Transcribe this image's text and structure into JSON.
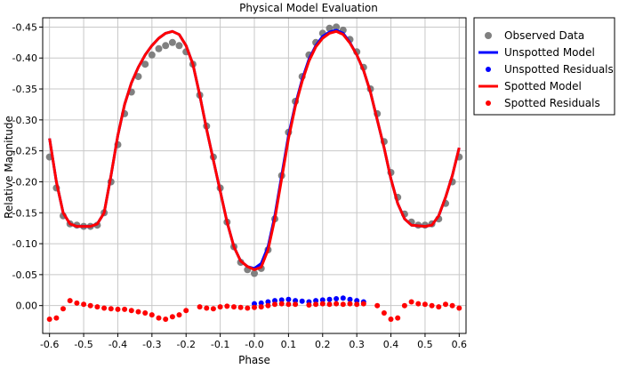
{
  "chart_data": {
    "type": "scatter",
    "title": "Physical Model Evaluation",
    "xlabel": "Phase",
    "ylabel": "Relative Magnitude",
    "xlim": [
      -0.62,
      0.62
    ],
    "ylim": [
      0.045,
      -0.465
    ],
    "y_reversed": true,
    "grid": true,
    "legend_position": "right",
    "x_ticks": [
      {
        "value": -0.6,
        "label": "-0.6"
      },
      {
        "value": -0.5,
        "label": "-0.5"
      },
      {
        "value": -0.4,
        "label": "-0.4"
      },
      {
        "value": -0.3,
        "label": "-0.3"
      },
      {
        "value": -0.2,
        "label": "-0.2"
      },
      {
        "value": -0.1,
        "label": "-0.1"
      },
      {
        "value": 0.0,
        "label": "-0.0"
      },
      {
        "value": 0.1,
        "label": "0.1"
      },
      {
        "value": 0.2,
        "label": "0.2"
      },
      {
        "value": 0.3,
        "label": "0.3"
      },
      {
        "value": 0.4,
        "label": "0.4"
      },
      {
        "value": 0.5,
        "label": "0.5"
      },
      {
        "value": 0.6,
        "label": "0.6"
      }
    ],
    "y_ticks": [
      {
        "value": -0.45,
        "label": "-0.45"
      },
      {
        "value": -0.4,
        "label": "-0.40"
      },
      {
        "value": -0.35,
        "label": "-0.35"
      },
      {
        "value": -0.3,
        "label": "-0.30"
      },
      {
        "value": -0.25,
        "label": "-0.25"
      },
      {
        "value": -0.2,
        "label": "-0.20"
      },
      {
        "value": -0.15,
        "label": "-0.15"
      },
      {
        "value": -0.1,
        "label": "-0.10"
      },
      {
        "value": -0.05,
        "label": "-0.05"
      },
      {
        "value": 0.0,
        "label": "0.00"
      }
    ],
    "series": [
      {
        "name": "Observed Data",
        "kind": "points",
        "color": "#808080",
        "points": [
          [
            -0.6,
            -0.24
          ],
          [
            -0.58,
            -0.19
          ],
          [
            -0.56,
            -0.145
          ],
          [
            -0.54,
            -0.132
          ],
          [
            -0.52,
            -0.13
          ],
          [
            -0.5,
            -0.128
          ],
          [
            -0.48,
            -0.128
          ],
          [
            -0.46,
            -0.13
          ],
          [
            -0.44,
            -0.15
          ],
          [
            -0.42,
            -0.2
          ],
          [
            -0.4,
            -0.26
          ],
          [
            -0.38,
            -0.31
          ],
          [
            -0.36,
            -0.345
          ],
          [
            -0.34,
            -0.37
          ],
          [
            -0.32,
            -0.39
          ],
          [
            -0.3,
            -0.405
          ],
          [
            -0.28,
            -0.415
          ],
          [
            -0.26,
            -0.42
          ],
          [
            -0.24,
            -0.425
          ],
          [
            -0.22,
            -0.42
          ],
          [
            -0.2,
            -0.41
          ],
          [
            -0.18,
            -0.39
          ],
          [
            -0.16,
            -0.34
          ],
          [
            -0.14,
            -0.29
          ],
          [
            -0.12,
            -0.24
          ],
          [
            -0.1,
            -0.19
          ],
          [
            -0.08,
            -0.135
          ],
          [
            -0.06,
            -0.095
          ],
          [
            -0.04,
            -0.07
          ],
          [
            -0.02,
            -0.058
          ],
          [
            0.0,
            -0.052
          ],
          [
            0.02,
            -0.06
          ],
          [
            0.04,
            -0.09
          ],
          [
            0.06,
            -0.14
          ],
          [
            0.08,
            -0.21
          ],
          [
            0.1,
            -0.28
          ],
          [
            0.12,
            -0.33
          ],
          [
            0.14,
            -0.37
          ],
          [
            0.16,
            -0.405
          ],
          [
            0.18,
            -0.425
          ],
          [
            0.2,
            -0.44
          ],
          [
            0.22,
            -0.448
          ],
          [
            0.24,
            -0.45
          ],
          [
            0.26,
            -0.445
          ],
          [
            0.28,
            -0.43
          ],
          [
            0.3,
            -0.41
          ],
          [
            0.32,
            -0.385
          ],
          [
            0.34,
            -0.35
          ],
          [
            0.36,
            -0.31
          ],
          [
            0.38,
            -0.265
          ],
          [
            0.4,
            -0.215
          ],
          [
            0.42,
            -0.175
          ],
          [
            0.44,
            -0.148
          ],
          [
            0.46,
            -0.135
          ],
          [
            0.48,
            -0.13
          ],
          [
            0.5,
            -0.13
          ],
          [
            0.52,
            -0.132
          ],
          [
            0.54,
            -0.14
          ],
          [
            0.56,
            -0.165
          ],
          [
            0.58,
            -0.2
          ],
          [
            0.6,
            -0.24
          ]
        ]
      },
      {
        "name": "Unspotted Model",
        "kind": "line",
        "color": "#0000ff",
        "points": [
          [
            -0.6,
            -0.27
          ],
          [
            -0.58,
            -0.2
          ],
          [
            -0.56,
            -0.15
          ],
          [
            -0.54,
            -0.132
          ],
          [
            -0.52,
            -0.128
          ],
          [
            -0.48,
            -0.128
          ],
          [
            -0.46,
            -0.132
          ],
          [
            -0.44,
            -0.15
          ],
          [
            -0.42,
            -0.21
          ],
          [
            -0.4,
            -0.275
          ],
          [
            -0.38,
            -0.325
          ],
          [
            -0.36,
            -0.36
          ],
          [
            -0.34,
            -0.385
          ],
          [
            -0.32,
            -0.405
          ],
          [
            -0.3,
            -0.42
          ],
          [
            -0.28,
            -0.432
          ],
          [
            -0.26,
            -0.44
          ],
          [
            -0.24,
            -0.443
          ],
          [
            -0.22,
            -0.438
          ],
          [
            -0.2,
            -0.42
          ],
          [
            -0.18,
            -0.39
          ],
          [
            -0.16,
            -0.34
          ],
          [
            -0.14,
            -0.285
          ],
          [
            -0.12,
            -0.235
          ],
          [
            -0.1,
            -0.185
          ],
          [
            -0.08,
            -0.135
          ],
          [
            -0.06,
            -0.095
          ],
          [
            -0.04,
            -0.072
          ],
          [
            -0.02,
            -0.063
          ],
          [
            0.0,
            -0.06
          ],
          [
            0.02,
            -0.068
          ],
          [
            0.04,
            -0.095
          ],
          [
            0.06,
            -0.145
          ],
          [
            0.08,
            -0.21
          ],
          [
            0.1,
            -0.275
          ],
          [
            0.12,
            -0.325
          ],
          [
            0.14,
            -0.365
          ],
          [
            0.16,
            -0.398
          ],
          [
            0.18,
            -0.42
          ],
          [
            0.2,
            -0.435
          ],
          [
            0.22,
            -0.442
          ],
          [
            0.24,
            -0.445
          ],
          [
            0.26,
            -0.44
          ],
          [
            0.28,
            -0.425
          ],
          [
            0.3,
            -0.405
          ],
          [
            0.32,
            -0.38
          ],
          [
            0.34,
            -0.345
          ],
          [
            0.36,
            -0.3
          ],
          [
            0.38,
            -0.255
          ],
          [
            0.4,
            -0.205
          ],
          [
            0.42,
            -0.165
          ],
          [
            0.44,
            -0.14
          ],
          [
            0.46,
            -0.13
          ],
          [
            0.5,
            -0.128
          ],
          [
            0.52,
            -0.13
          ],
          [
            0.54,
            -0.145
          ],
          [
            0.56,
            -0.175
          ],
          [
            0.58,
            -0.21
          ],
          [
            0.6,
            -0.255
          ]
        ]
      },
      {
        "name": "Unspotted Residuals",
        "kind": "points",
        "color": "#0000ff",
        "points": [
          [
            0.0,
            -0.003
          ],
          [
            0.02,
            -0.004
          ],
          [
            0.04,
            -0.006
          ],
          [
            0.06,
            -0.008
          ],
          [
            0.08,
            -0.009
          ],
          [
            0.1,
            -0.01
          ],
          [
            0.12,
            -0.008
          ],
          [
            0.14,
            -0.007
          ],
          [
            0.16,
            -0.006
          ],
          [
            0.18,
            -0.008
          ],
          [
            0.2,
            -0.009
          ],
          [
            0.22,
            -0.01
          ],
          [
            0.24,
            -0.011
          ],
          [
            0.26,
            -0.012
          ],
          [
            0.28,
            -0.01
          ],
          [
            0.3,
            -0.008
          ],
          [
            0.32,
            -0.006
          ]
        ]
      },
      {
        "name": "Spotted Model",
        "kind": "line",
        "color": "#ff0000",
        "points": [
          [
            -0.6,
            -0.27
          ],
          [
            -0.58,
            -0.2
          ],
          [
            -0.56,
            -0.15
          ],
          [
            -0.54,
            -0.132
          ],
          [
            -0.52,
            -0.128
          ],
          [
            -0.48,
            -0.128
          ],
          [
            -0.46,
            -0.132
          ],
          [
            -0.44,
            -0.15
          ],
          [
            -0.42,
            -0.21
          ],
          [
            -0.4,
            -0.275
          ],
          [
            -0.38,
            -0.325
          ],
          [
            -0.36,
            -0.36
          ],
          [
            -0.34,
            -0.385
          ],
          [
            -0.32,
            -0.405
          ],
          [
            -0.3,
            -0.42
          ],
          [
            -0.28,
            -0.432
          ],
          [
            -0.26,
            -0.44
          ],
          [
            -0.24,
            -0.443
          ],
          [
            -0.22,
            -0.438
          ],
          [
            -0.2,
            -0.42
          ],
          [
            -0.18,
            -0.39
          ],
          [
            -0.16,
            -0.34
          ],
          [
            -0.14,
            -0.285
          ],
          [
            -0.12,
            -0.235
          ],
          [
            -0.1,
            -0.185
          ],
          [
            -0.08,
            -0.135
          ],
          [
            -0.06,
            -0.095
          ],
          [
            -0.04,
            -0.072
          ],
          [
            -0.02,
            -0.063
          ],
          [
            0.0,
            -0.058
          ],
          [
            0.02,
            -0.062
          ],
          [
            0.04,
            -0.09
          ],
          [
            0.06,
            -0.14
          ],
          [
            0.08,
            -0.205
          ],
          [
            0.1,
            -0.27
          ],
          [
            0.12,
            -0.322
          ],
          [
            0.14,
            -0.362
          ],
          [
            0.16,
            -0.395
          ],
          [
            0.18,
            -0.418
          ],
          [
            0.2,
            -0.432
          ],
          [
            0.22,
            -0.44
          ],
          [
            0.24,
            -0.443
          ],
          [
            0.26,
            -0.438
          ],
          [
            0.28,
            -0.424
          ],
          [
            0.3,
            -0.405
          ],
          [
            0.32,
            -0.38
          ],
          [
            0.34,
            -0.345
          ],
          [
            0.36,
            -0.3
          ],
          [
            0.38,
            -0.255
          ],
          [
            0.4,
            -0.205
          ],
          [
            0.42,
            -0.165
          ],
          [
            0.44,
            -0.14
          ],
          [
            0.46,
            -0.13
          ],
          [
            0.5,
            -0.128
          ],
          [
            0.52,
            -0.13
          ],
          [
            0.54,
            -0.145
          ],
          [
            0.56,
            -0.175
          ],
          [
            0.58,
            -0.21
          ],
          [
            0.6,
            -0.255
          ]
        ]
      },
      {
        "name": "Spotted Residuals",
        "kind": "points",
        "color": "#ff0000",
        "points": [
          [
            -0.6,
            0.022
          ],
          [
            -0.58,
            0.02
          ],
          [
            -0.56,
            0.005
          ],
          [
            -0.54,
            -0.008
          ],
          [
            -0.52,
            -0.004
          ],
          [
            -0.5,
            -0.002
          ],
          [
            -0.48,
            0.0
          ],
          [
            -0.46,
            0.002
          ],
          [
            -0.44,
            0.004
          ],
          [
            -0.42,
            0.005
          ],
          [
            -0.4,
            0.006
          ],
          [
            -0.38,
            0.006
          ],
          [
            -0.36,
            0.008
          ],
          [
            -0.34,
            0.01
          ],
          [
            -0.32,
            0.012
          ],
          [
            -0.3,
            0.015
          ],
          [
            -0.28,
            0.02
          ],
          [
            -0.26,
            0.022
          ],
          [
            -0.24,
            0.018
          ],
          [
            -0.22,
            0.015
          ],
          [
            -0.2,
            0.008
          ],
          [
            -0.16,
            0.002
          ],
          [
            -0.14,
            0.004
          ],
          [
            -0.12,
            0.005
          ],
          [
            -0.1,
            0.002
          ],
          [
            -0.08,
            0.001
          ],
          [
            -0.06,
            0.002
          ],
          [
            -0.04,
            0.003
          ],
          [
            -0.02,
            0.004
          ],
          [
            0.0,
            0.003
          ],
          [
            0.02,
            0.002
          ],
          [
            0.04,
            0.0
          ],
          [
            0.06,
            -0.002
          ],
          [
            0.08,
            -0.003
          ],
          [
            0.1,
            -0.002
          ],
          [
            0.12,
            -0.002
          ],
          [
            0.16,
            -0.001
          ],
          [
            0.18,
            -0.002
          ],
          [
            0.2,
            -0.003
          ],
          [
            0.22,
            -0.002
          ],
          [
            0.24,
            -0.003
          ],
          [
            0.26,
            -0.002
          ],
          [
            0.28,
            -0.003
          ],
          [
            0.3,
            -0.002
          ],
          [
            0.32,
            -0.003
          ],
          [
            0.36,
            0.0
          ],
          [
            0.38,
            0.012
          ],
          [
            0.4,
            0.022
          ],
          [
            0.42,
            0.02
          ],
          [
            0.44,
            0.0
          ],
          [
            0.46,
            -0.006
          ],
          [
            0.48,
            -0.003
          ],
          [
            0.5,
            -0.002
          ],
          [
            0.52,
            0.0
          ],
          [
            0.54,
            0.002
          ],
          [
            0.56,
            -0.002
          ],
          [
            0.58,
            0.0
          ],
          [
            0.6,
            0.004
          ]
        ]
      }
    ]
  }
}
